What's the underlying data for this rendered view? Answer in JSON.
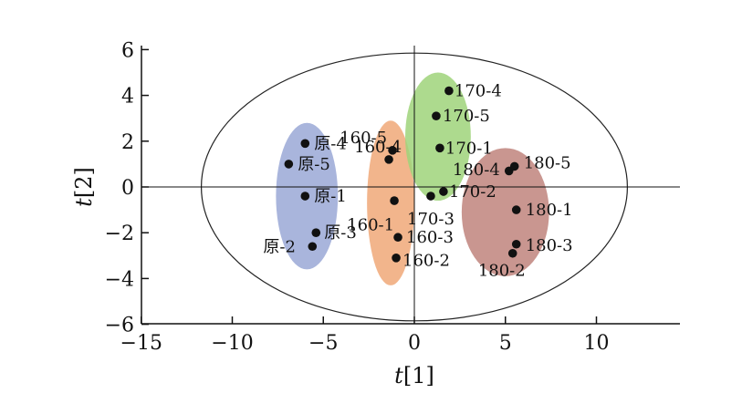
{
  "chart_data": {
    "type": "scatter",
    "xlabel": "t[1]",
    "ylabel": "t[2]",
    "xlim": [
      -15,
      15
    ],
    "ylim": [
      -6,
      6
    ],
    "xticks": [
      "−15",
      "−10",
      "−5",
      "0",
      "5",
      "10"
    ],
    "yticks": [
      "−6",
      "−4",
      "−2",
      "0",
      "2",
      "4",
      "6"
    ],
    "grid": false,
    "confidence_ellipse": {
      "cx": 0,
      "cy": 0,
      "rx": 11.7,
      "ry": 5.85
    },
    "groups": [
      {
        "color": "#9aa8d6",
        "cx": -5.9,
        "cy": -0.4,
        "rx": 1.7,
        "ry": 3.2
      },
      {
        "color": "#f0a878",
        "cx": -1.3,
        "cy": -0.7,
        "rx": 1.3,
        "ry": 3.6
      },
      {
        "color": "#9fd47a",
        "cx": 1.3,
        "cy": 2.2,
        "rx": 1.8,
        "ry": 2.8
      },
      {
        "color": "#c0847c",
        "cx": 5.0,
        "cy": -1.1,
        "rx": 2.4,
        "ry": 2.8
      }
    ],
    "points": [
      {
        "label": "原-1",
        "x": -6.0,
        "y": -0.4,
        "lx": 0.5,
        "ly": 0
      },
      {
        "label": "原-2",
        "x": -5.6,
        "y": -2.6,
        "lx": -2.7,
        "ly": 0
      },
      {
        "label": "原-3",
        "x": -5.4,
        "y": -2.0,
        "lx": 0.45,
        "ly": 0
      },
      {
        "label": "原-4",
        "x": -6.0,
        "y": 1.9,
        "lx": 0.5,
        "ly": 0
      },
      {
        "label": "原-5",
        "x": -6.9,
        "y": 1.0,
        "lx": 0.5,
        "ly": 0
      },
      {
        "label": "160-1",
        "x": -1.1,
        "y": -0.6,
        "lx": -2.6,
        "ly": -1.05
      },
      {
        "label": "160-2",
        "x": -1.0,
        "y": -3.1,
        "lx": 0.35,
        "ly": -0.1
      },
      {
        "label": "160-3",
        "x": -0.9,
        "y": -2.2,
        "lx": 0.45,
        "ly": 0
      },
      {
        "label": "160-4",
        "x": -1.4,
        "y": 1.2,
        "lx": -1.9,
        "ly": 0.55
      },
      {
        "label": "160-5",
        "x": -1.2,
        "y": 1.6,
        "lx": -2.9,
        "ly": 0.55
      },
      {
        "label": "170-1",
        "x": 1.4,
        "y": 1.7,
        "lx": 0.3,
        "ly": 0
      },
      {
        "label": "170-2",
        "x": 1.6,
        "y": -0.2,
        "lx": 0.3,
        "ly": 0
      },
      {
        "label": "170-3",
        "x": 0.9,
        "y": -0.4,
        "lx": -1.3,
        "ly": -1.0
      },
      {
        "label": "170-4",
        "x": 1.9,
        "y": 4.2,
        "lx": 0.3,
        "ly": 0
      },
      {
        "label": "170-5",
        "x": 1.2,
        "y": 3.1,
        "lx": 0.35,
        "ly": 0
      },
      {
        "label": "180-1",
        "x": 5.6,
        "y": -1.0,
        "lx": 0.5,
        "ly": 0
      },
      {
        "label": "180-2",
        "x": 5.4,
        "y": -2.9,
        "lx": -1.9,
        "ly": -0.75
      },
      {
        "label": "180-3",
        "x": 5.6,
        "y": -2.5,
        "lx": 0.5,
        "ly": -0.05
      },
      {
        "label": "180-4",
        "x": 5.2,
        "y": 0.7,
        "lx": -3.1,
        "ly": 0.05
      },
      {
        "label": "180-5",
        "x": 5.5,
        "y": 0.9,
        "lx": 0.5,
        "ly": 0.15
      }
    ]
  }
}
